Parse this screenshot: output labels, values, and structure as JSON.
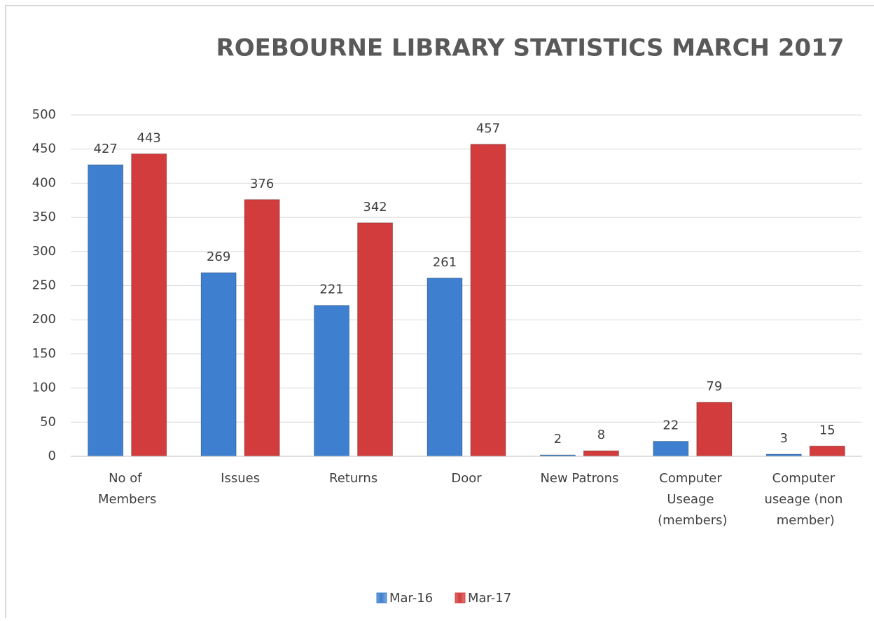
{
  "chart_data": {
    "type": "bar",
    "title": "ROEBOURNE LIBRARY STATISTICS MARCH 2017",
    "categories": [
      "No of Members",
      "Issues",
      "Returns",
      "Door",
      "New Patrons",
      "Computer Useage (members)",
      "Computer useage (non member)"
    ],
    "series": [
      {
        "name": "Mar-16",
        "color": "#3f7fcf",
        "values": [
          427,
          269,
          221,
          261,
          2,
          22,
          3
        ]
      },
      {
        "name": "Mar-17",
        "color": "#d23c3c",
        "values": [
          443,
          376,
          342,
          457,
          8,
          79,
          15
        ]
      }
    ],
    "ylim": [
      0,
      500
    ],
    "yticks": [
      0,
      50,
      100,
      150,
      200,
      250,
      300,
      350,
      400,
      450,
      500
    ],
    "grid": true,
    "legend": "bottom"
  }
}
